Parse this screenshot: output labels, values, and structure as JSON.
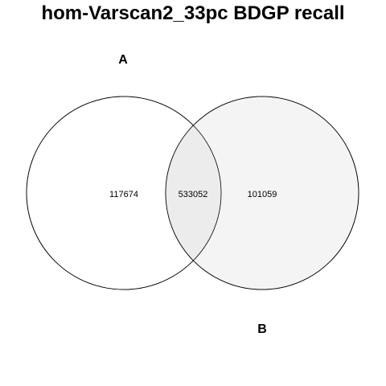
{
  "title": "hom-Varscan2_33pc BDGP recall",
  "sets": [
    {
      "label": "A",
      "only_count": "117674",
      "fill": "#ffffff"
    },
    {
      "label": "B",
      "only_count": "101059",
      "fill": "#f4f4f4"
    }
  ],
  "intersection": {
    "count": "533052",
    "fill": "#ececec"
  },
  "stroke_color": "#000000"
}
